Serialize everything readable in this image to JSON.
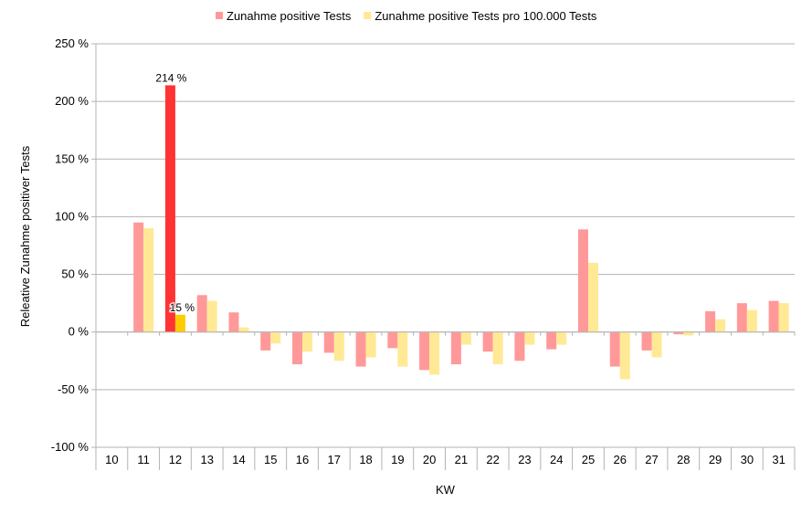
{
  "chart_data": {
    "type": "bar",
    "categories": [
      "10",
      "11",
      "12",
      "13",
      "14",
      "15",
      "16",
      "17",
      "18",
      "19",
      "20",
      "21",
      "22",
      "23",
      "24",
      "25",
      "26",
      "27",
      "28",
      "29",
      "30",
      "31"
    ],
    "series": [
      {
        "name": "Zunahme positive Tests",
        "color": "#ff9999",
        "values": [
          null,
          95,
          214,
          32,
          17,
          -16,
          -28,
          -18,
          -30,
          -14,
          -33,
          -28,
          -17,
          -25,
          -15,
          89,
          -30,
          -16,
          -2,
          18,
          25,
          27
        ]
      },
      {
        "name": "Zunahme positive Tests pro 100.000 Tests",
        "color": "#ffe994",
        "values": [
          null,
          90,
          15,
          27,
          4,
          -10,
          -17,
          -25,
          -22,
          -30,
          -37,
          -11,
          -28,
          -11,
          -11,
          60,
          -41,
          -22,
          -3,
          11,
          19,
          25
        ]
      }
    ],
    "highlight": {
      "category": "12",
      "colors": [
        "#ff3333",
        "#ffcc00"
      ],
      "labels": [
        "214 %",
        "15 %"
      ]
    },
    "xlabel": "KW",
    "ylabel": "Releative Zunahme positiver Tests",
    "ylim": [
      -100,
      250
    ],
    "yticks": [
      -100,
      -50,
      0,
      50,
      100,
      150,
      200,
      250
    ],
    "ytick_suffix": " %",
    "grid": true,
    "legend_position": "top"
  }
}
